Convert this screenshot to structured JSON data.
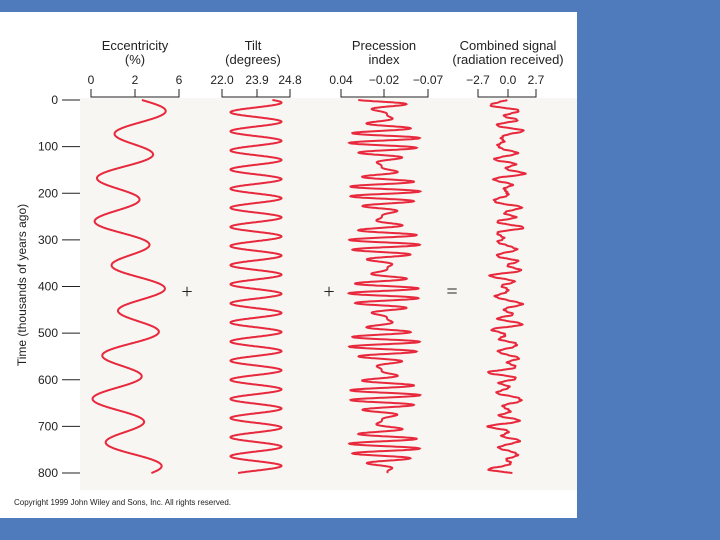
{
  "colors": {
    "frame": "#4f7bbd",
    "curve": "#e8283c",
    "plot_bg": "#f7f6f2"
  },
  "operators": {
    "plus1": "+",
    "plus2": "+",
    "equals": "="
  },
  "copyright": "Copyright 1999 John Wiley and Sons, Inc. All rights reserved.",
  "chart_data": {
    "type": "line",
    "ylabel": "Time (thousands of years ago)",
    "y_ticks": [
      "0",
      "100",
      "200",
      "300",
      "400",
      "500",
      "600",
      "700",
      "800"
    ],
    "ylim": [
      0,
      800
    ],
    "grid": false,
    "panels": [
      {
        "title_line1": "Eccentricity",
        "title_line2": "(%)",
        "ticks": [
          "0",
          "2",
          "6"
        ],
        "xlim": [
          0,
          6
        ],
        "shape": {
          "center": 2.6,
          "components": [
            [
              1.6,
              95
            ],
            [
              0.9,
              410
            ]
          ],
          "noise": 0
        }
      },
      {
        "title_line1": "Tilt",
        "title_line2": "(degrees)",
        "ticks": [
          "22.0",
          "23.9",
          "24.8"
        ],
        "xlim": [
          22.0,
          24.8
        ],
        "shape": {
          "center": 23.4,
          "components": [
            [
              1.05,
              41
            ]
          ],
          "noise": 0
        }
      },
      {
        "title_line1": "Precession",
        "title_line2": "index",
        "ticks": [
          "0.04",
          "−0.02",
          "−0.07"
        ],
        "xlim": [
          0.04,
          -0.07
        ],
        "shape": {
          "center": -0.015,
          "components": [
            [
              0.025,
              23
            ],
            [
              0.02,
              19
            ]
          ],
          "noise": 0
        }
      },
      {
        "title_line1": "Combined signal",
        "title_line2": "(radiation received)",
        "ticks": [
          "−2.7",
          "0.0",
          "2.7"
        ],
        "xlim": [
          -2.7,
          2.7
        ],
        "shape": {
          "center": 0,
          "components": [
            [
              0.7,
              23
            ],
            [
              0.6,
              41
            ],
            [
              0.35,
              100
            ],
            [
              0.25,
              19
            ]
          ],
          "noise": 0.15
        }
      }
    ]
  }
}
